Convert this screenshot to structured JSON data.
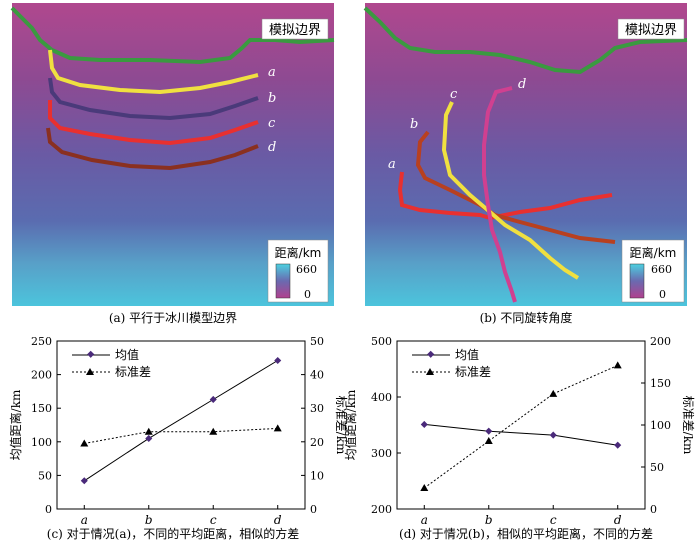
{
  "panels": {
    "a": {
      "caption": "(a) 平行于冰川模型边界",
      "boundary_label": "模拟边界",
      "line_labels": [
        "a",
        "b",
        "c",
        "d"
      ],
      "colorbar": {
        "title": "距离/km",
        "max_label": "660",
        "min_label": "0",
        "range": [
          0,
          660
        ]
      }
    },
    "b": {
      "caption": "(b) 不同旋转角度",
      "boundary_label": "模拟边界",
      "line_labels": [
        "a",
        "b",
        "c",
        "d"
      ],
      "colorbar": {
        "title": "距离/km",
        "max_label": "660",
        "min_label": "0",
        "range": [
          0,
          660
        ]
      }
    }
  },
  "colors": {
    "line_a": "#f0e040",
    "line_b": "#4a3a7a",
    "line_c": "#e83030",
    "line_d": "#8a3020",
    "rot_a": "#e83030",
    "rot_b": "#b84020",
    "rot_c": "#f0e040",
    "rot_d": "#d04090",
    "boundary": "#3a9a40",
    "label_box": "#ffffff"
  },
  "chart_data": [
    {
      "type": "line",
      "caption": "(c) 对于情况(a)，不同的平均距离，相似的方差",
      "categories": [
        "a",
        "b",
        "c",
        "d"
      ],
      "ylabel": "均值距离/km",
      "y2label": "标准差/km",
      "ylim": [
        0,
        250
      ],
      "y2lim": [
        0,
        50
      ],
      "yticks": [
        0,
        50,
        100,
        150,
        200,
        250
      ],
      "y2ticks": [
        0,
        10,
        20,
        30,
        40,
        50
      ],
      "legend_position": "top-left",
      "series": [
        {
          "name": "均值",
          "axis": "left",
          "style": "solid",
          "marker": "diamond",
          "values": [
            42,
            105,
            163,
            221
          ]
        },
        {
          "name": "标准差",
          "axis": "right",
          "style": "dotted",
          "marker": "triangle",
          "values": [
            19.5,
            23,
            23,
            24
          ]
        }
      ]
    },
    {
      "type": "line",
      "caption": "(d) 对于情况(b)，相似的平均距离，不同的方差",
      "categories": [
        "a",
        "b",
        "c",
        "d"
      ],
      "ylabel": "均值距离/km",
      "y2label": "标准差/km",
      "ylim": [
        200,
        500
      ],
      "y2lim": [
        0,
        200
      ],
      "yticks": [
        200,
        300,
        400,
        500
      ],
      "y2ticks": [
        0,
        50,
        100,
        150,
        200
      ],
      "legend_position": "top-left",
      "series": [
        {
          "name": "均值",
          "axis": "left",
          "style": "solid",
          "marker": "diamond",
          "values": [
            351,
            339,
            332,
            314
          ]
        },
        {
          "name": "标准差",
          "axis": "right",
          "style": "dotted",
          "marker": "triangle",
          "values": [
            25,
            81,
            137,
            171
          ]
        }
      ]
    }
  ]
}
